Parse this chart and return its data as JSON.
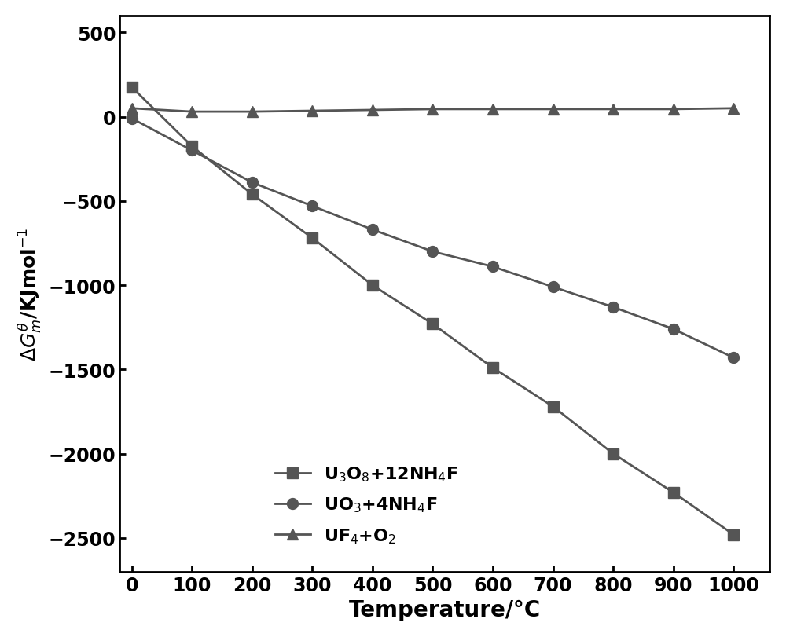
{
  "series": [
    {
      "label": "U$_3$O$_8$+12NH$_4$F",
      "marker": "s",
      "x": [
        0,
        100,
        200,
        300,
        400,
        500,
        600,
        700,
        800,
        900,
        1000
      ],
      "y": [
        175,
        -175,
        -460,
        -720,
        -1000,
        -1230,
        -1490,
        -1720,
        -2000,
        -2230,
        -2480
      ]
    },
    {
      "label": "UO$_3$+4NH$_4$F",
      "marker": "o",
      "x": [
        0,
        100,
        200,
        300,
        400,
        500,
        600,
        700,
        800,
        900,
        1000
      ],
      "y": [
        -10,
        -200,
        -390,
        -530,
        -670,
        -800,
        -890,
        -1010,
        -1130,
        -1260,
        -1430
      ]
    },
    {
      "label": "UF$_4$+O$_2$",
      "marker": "^",
      "x": [
        0,
        100,
        200,
        300,
        400,
        500,
        600,
        700,
        800,
        900,
        1000
      ],
      "y": [
        50,
        30,
        30,
        35,
        40,
        45,
        45,
        45,
        45,
        45,
        50
      ]
    }
  ],
  "color": "#555555",
  "linewidth": 2.0,
  "markersize": 10,
  "xlabel": "Temperature/°C",
  "ylabel": "$\\Delta G^{\\theta}_{m}$/KJmol$^{-1}$",
  "xlim": [
    -20,
    1060
  ],
  "ylim": [
    -2700,
    600
  ],
  "xticks": [
    0,
    100,
    200,
    300,
    400,
    500,
    600,
    700,
    800,
    900,
    1000
  ],
  "yticks": [
    500,
    0,
    -500,
    -1000,
    -1500,
    -2000,
    -2500
  ],
  "xlabel_fontsize": 20,
  "ylabel_fontsize": 18,
  "tick_fontsize": 17,
  "legend_fontsize": 16,
  "background_color": "#ffffff"
}
